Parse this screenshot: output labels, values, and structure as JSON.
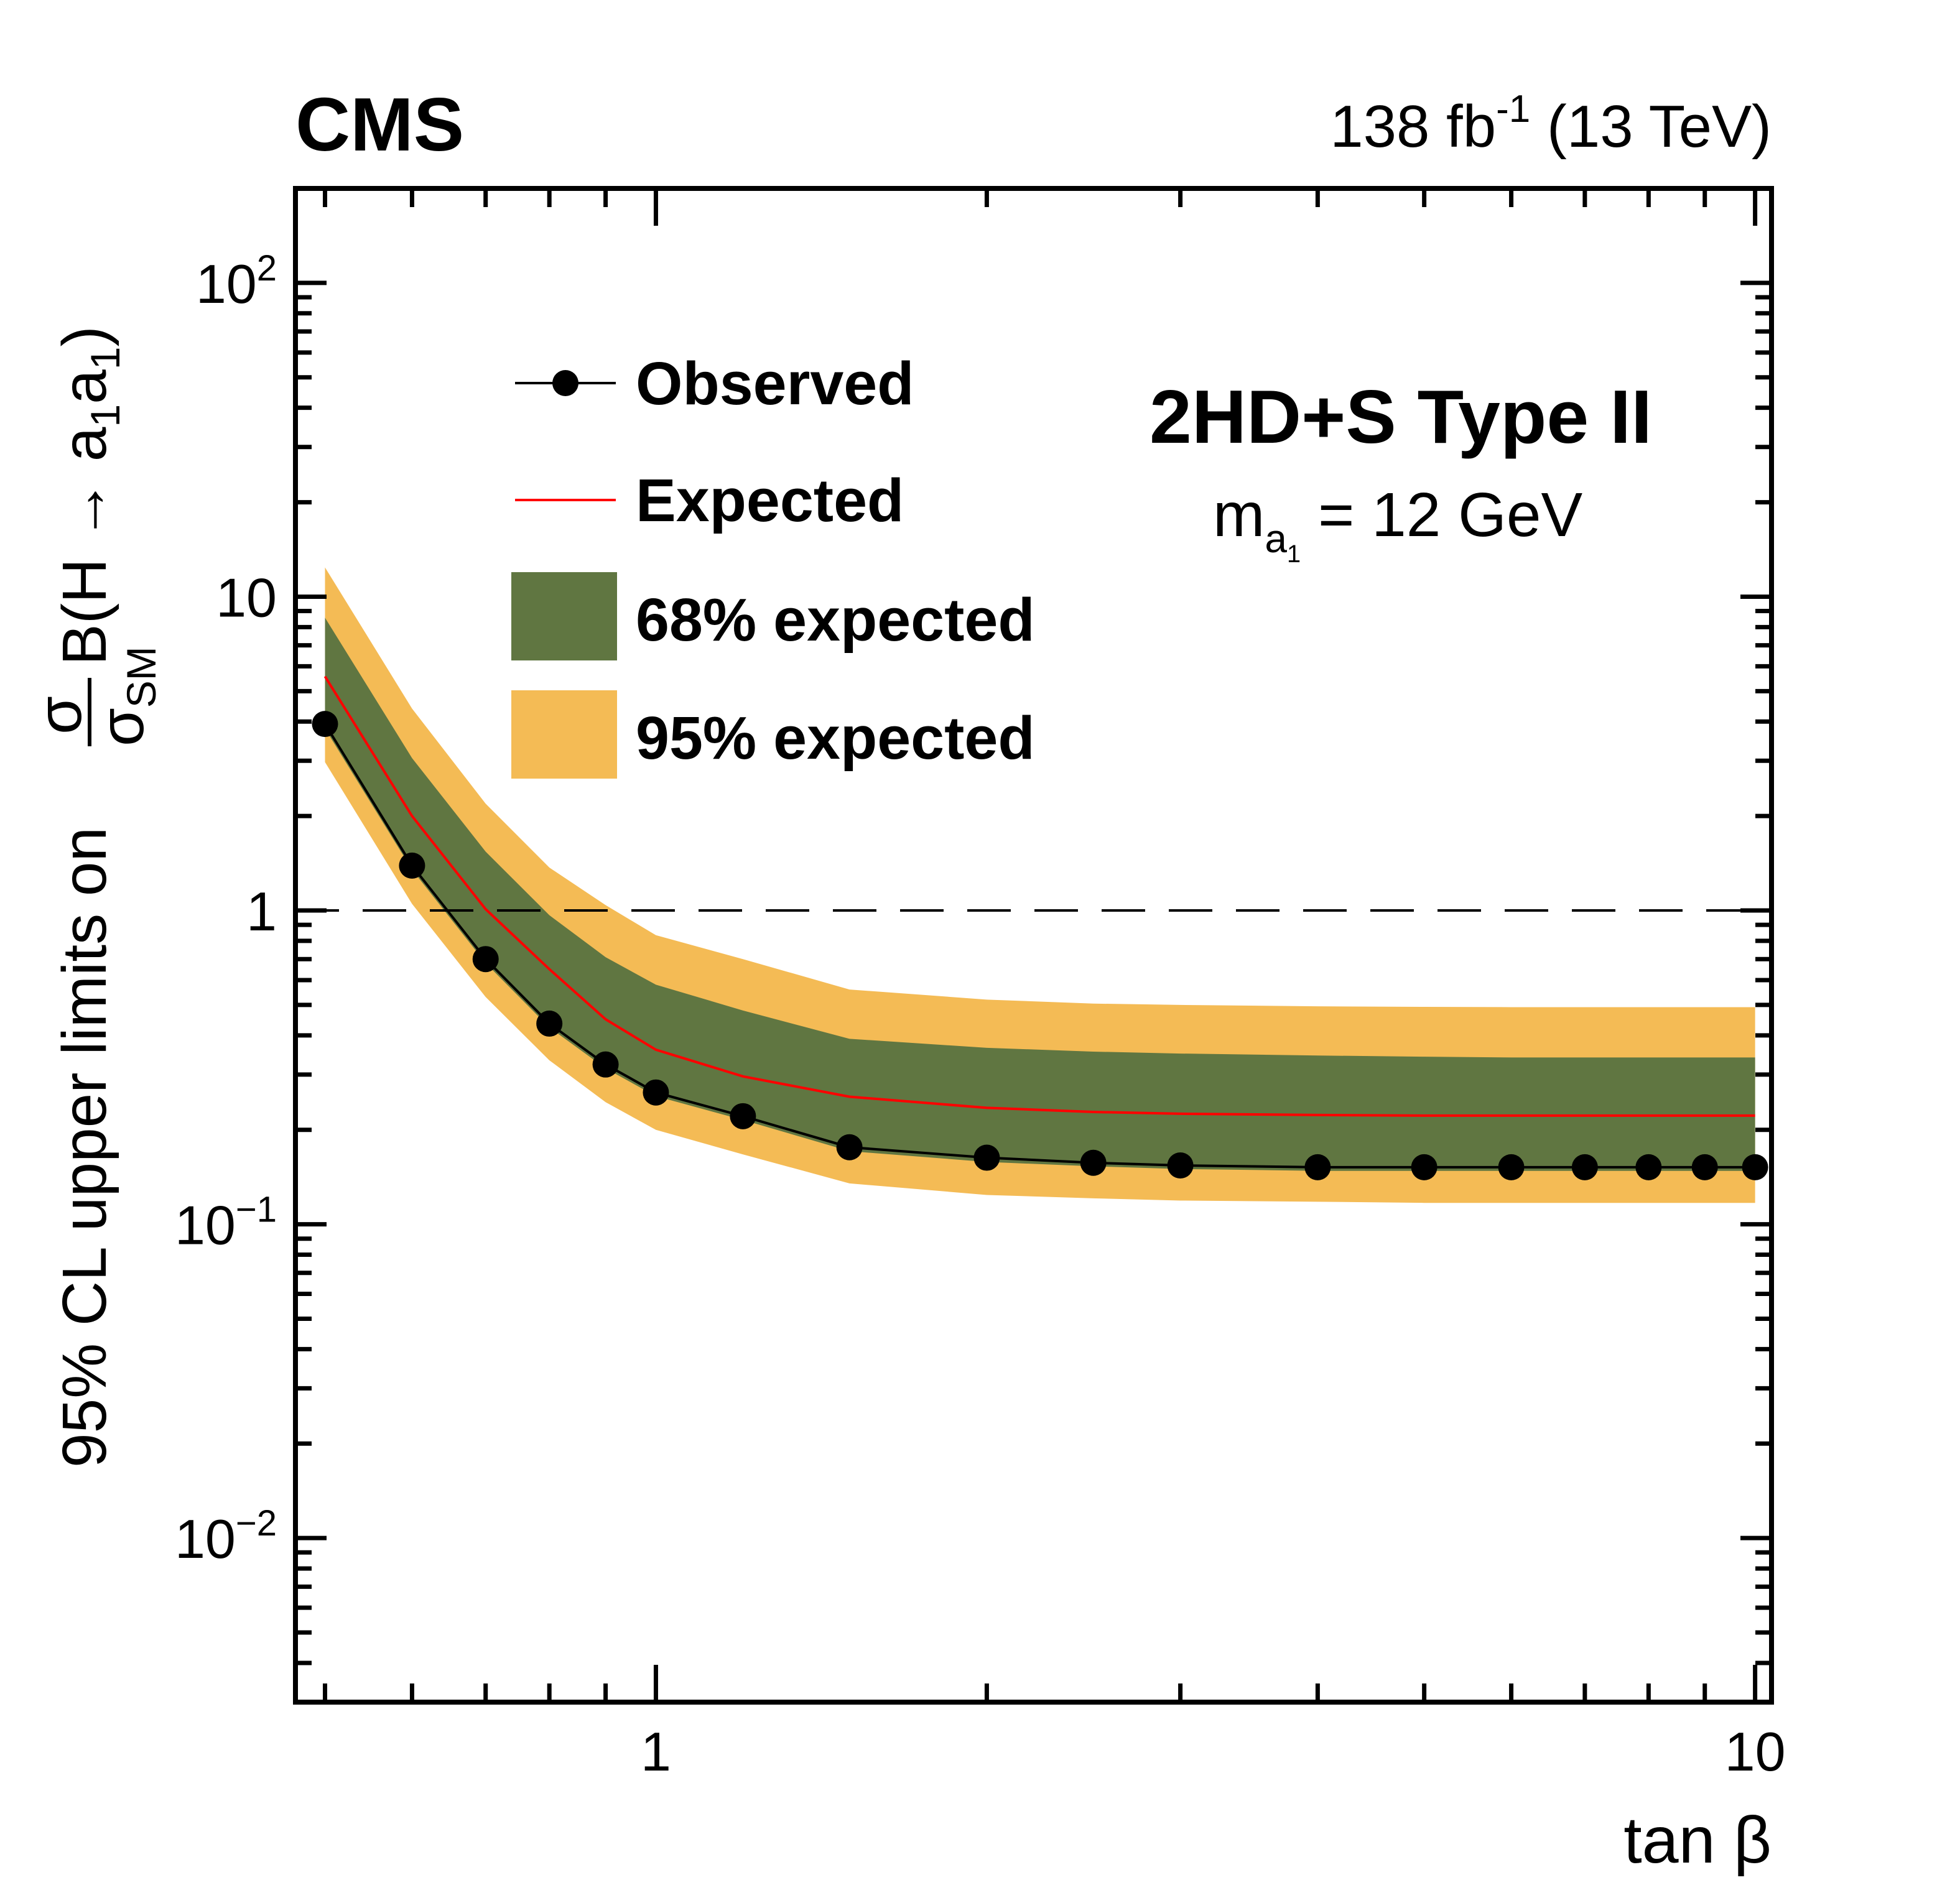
{
  "header": {
    "experiment": "CMS",
    "lumi_prefix": "138 fb",
    "lumi_exp": "-1",
    "lumi_suffix": " (13 TeV)"
  },
  "annotations": {
    "model": "2HD+S Type II",
    "mass_m": "m",
    "mass_sub": "a",
    "mass_subsub": "1",
    "mass_rest": " = 12 GeV"
  },
  "chart_data": {
    "type": "line",
    "xscale": "log",
    "yscale": "log",
    "xlim": [
      0.47,
      10.35
    ],
    "ylim": [
      0.003,
      200
    ],
    "xlabel": "tan β",
    "ylabel": {
      "prefix": "95% CL upper limits on ",
      "num": "σ",
      "den": "σ",
      "den_sub": "SM",
      "suffix": " B(H → a",
      "a_sub1": "1",
      "mid": "a",
      "a_sub2": "1",
      "close": ")"
    },
    "x_ticks": [
      {
        "v": 1,
        "label": "1"
      },
      {
        "v": 10,
        "label": "10"
      }
    ],
    "y_ticks": [
      {
        "v": 0.01,
        "base": "10",
        "exp": "−2"
      },
      {
        "v": 0.1,
        "base": "10",
        "exp": "−1"
      },
      {
        "v": 1,
        "base": "1",
        "exp": ""
      },
      {
        "v": 10,
        "base": "10",
        "exp": ""
      },
      {
        "v": 100,
        "base": "10",
        "exp": "2"
      }
    ],
    "reference_line": {
      "y": 1,
      "style": "dashed"
    },
    "x": [
      0.5,
      0.6,
      0.7,
      0.8,
      0.9,
      1.0,
      1.2,
      1.5,
      2,
      2.5,
      3,
      4,
      5,
      6,
      7,
      8,
      9,
      10
    ],
    "series": [
      {
        "name": "Observed",
        "color": "#000000",
        "marker": "circle",
        "values": [
          3.93,
          1.39,
          0.7,
          0.436,
          0.323,
          0.263,
          0.221,
          0.176,
          0.163,
          0.157,
          0.154,
          0.152,
          0.152,
          0.152,
          0.152,
          0.152,
          0.152,
          0.152
        ]
      },
      {
        "name": "Expected",
        "color": "#ff0000",
        "values": [
          5.57,
          2.0,
          1.01,
          0.65,
          0.45,
          0.36,
          0.296,
          0.255,
          0.235,
          0.228,
          0.225,
          0.223,
          0.222,
          0.222,
          0.222,
          0.222,
          0.222,
          0.222
        ]
      }
    ],
    "bands": [
      {
        "name": "95% expected",
        "color": "#f4bb55",
        "upper": [
          12.4,
          4.4,
          2.19,
          1.37,
          1.04,
          0.834,
          0.7,
          0.56,
          0.52,
          0.505,
          0.5,
          0.495,
          0.493,
          0.492,
          0.492,
          0.492,
          0.492,
          0.492
        ],
        "lower": [
          2.97,
          1.05,
          0.53,
          0.333,
          0.245,
          0.2,
          0.167,
          0.135,
          0.124,
          0.121,
          0.119,
          0.118,
          0.117,
          0.117,
          0.117,
          0.117,
          0.117,
          0.117
        ]
      },
      {
        "name": "68% expected",
        "color": "#607641",
        "upper": [
          8.57,
          3.06,
          1.54,
          0.966,
          0.71,
          0.58,
          0.48,
          0.39,
          0.365,
          0.355,
          0.35,
          0.345,
          0.342,
          0.34,
          0.34,
          0.34,
          0.34,
          0.34
        ],
        "lower": [
          3.8,
          1.35,
          0.68,
          0.424,
          0.314,
          0.256,
          0.215,
          0.171,
          0.158,
          0.153,
          0.15,
          0.148,
          0.148,
          0.148,
          0.148,
          0.148,
          0.148,
          0.148
        ]
      }
    ],
    "legend": {
      "placement": "top-left",
      "entries": [
        "Observed",
        "Expected",
        "68% expected",
        "95% expected"
      ]
    }
  }
}
